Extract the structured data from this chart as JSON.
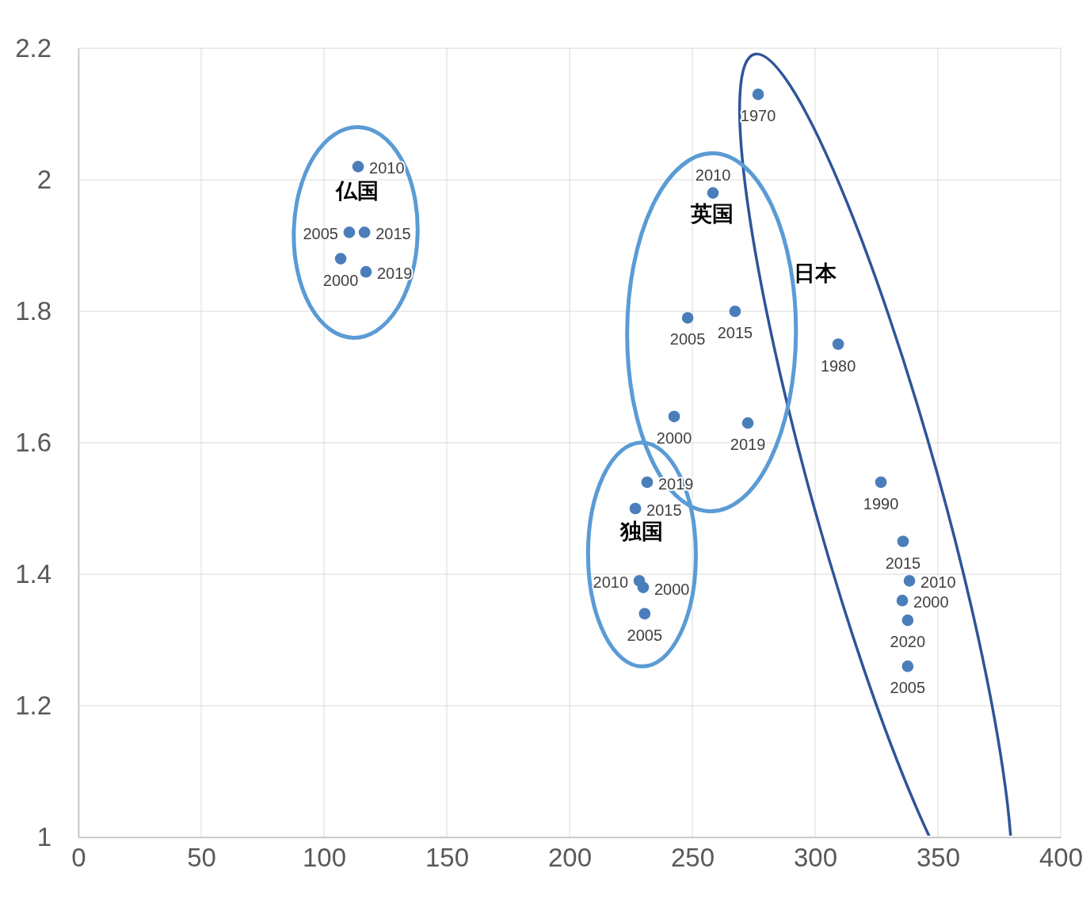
{
  "chart_data": {
    "type": "scatter",
    "xlim": [
      0,
      400
    ],
    "xticks": [
      0,
      50,
      100,
      150,
      200,
      250,
      300,
      350,
      400
    ],
    "ylim": [
      1,
      2.2
    ],
    "yticks": [
      1,
      1.2,
      1.4,
      1.6,
      1.8,
      2,
      2.2
    ],
    "grid": true,
    "marker": "circle",
    "series": [
      {
        "name": "仏国",
        "color": "#4a7ebb",
        "x": [
          106.8,
          110.3,
          113.9,
          116.5,
          117.1
        ],
        "values": [
          1.88,
          1.92,
          2.02,
          1.92,
          1.86
        ]
      },
      {
        "name": "日本",
        "color": "#4a7ebb",
        "x": [
          276.8,
          309.4,
          326.8,
          335.5,
          337.7,
          338.4,
          335.8,
          337.7
        ],
        "values": [
          2.13,
          1.75,
          1.54,
          1.36,
          1.26,
          1.39,
          1.45,
          1.33
        ]
      },
      {
        "name": "英国",
        "color": "#4a7ebb",
        "x": [
          242.6,
          248.1,
          258.4,
          267.4,
          272.6
        ],
        "values": [
          1.64,
          1.79,
          1.98,
          1.8,
          1.63
        ]
      },
      {
        "name": "独国",
        "color": "#4a7ebb",
        "x": [
          230.0,
          230.6,
          228.4,
          226.8,
          231.6
        ],
        "values": [
          1.38,
          1.34,
          1.39,
          1.5,
          1.54
        ]
      }
    ],
    "annotations": [
      {
        "text": "2000",
        "x": 106.8,
        "y": 1.88
      },
      {
        "text": "2005",
        "x": 110.3,
        "y": 1.92
      },
      {
        "text": "2010",
        "x": 113.9,
        "y": 2.02
      },
      {
        "text": "2015",
        "x": 116.5,
        "y": 1.92
      },
      {
        "text": "2019",
        "x": 117.1,
        "y": 1.86
      },
      {
        "text": "1970",
        "x": 276.8,
        "y": 2.13
      },
      {
        "text": "1980",
        "x": 309.4,
        "y": 1.75
      },
      {
        "text": "1990",
        "x": 326.8,
        "y": 1.54
      },
      {
        "text": "2000",
        "x": 335.5,
        "y": 1.36
      },
      {
        "text": "2005",
        "x": 337.7,
        "y": 1.26
      },
      {
        "text": "2010",
        "x": 338.4,
        "y": 1.39
      },
      {
        "text": "2015",
        "x": 335.8,
        "y": 1.45
      },
      {
        "text": "2020",
        "x": 337.7,
        "y": 1.33
      },
      {
        "text": "2000",
        "x": 242.6,
        "y": 1.64
      },
      {
        "text": "2005",
        "x": 248.1,
        "y": 1.79
      },
      {
        "text": "2010",
        "x": 258.4,
        "y": 1.98
      },
      {
        "text": "2015",
        "x": 267.4,
        "y": 1.8
      },
      {
        "text": "2019",
        "x": 272.6,
        "y": 1.63
      },
      {
        "text": "2000",
        "x": 230.0,
        "y": 1.38
      },
      {
        "text": "2005",
        "x": 230.6,
        "y": 1.34
      },
      {
        "text": "2010",
        "x": 228.4,
        "y": 1.39
      },
      {
        "text": "2015",
        "x": 226.8,
        "y": 1.5
      },
      {
        "text": "2019",
        "x": 231.6,
        "y": 1.54
      }
    ]
  }
}
